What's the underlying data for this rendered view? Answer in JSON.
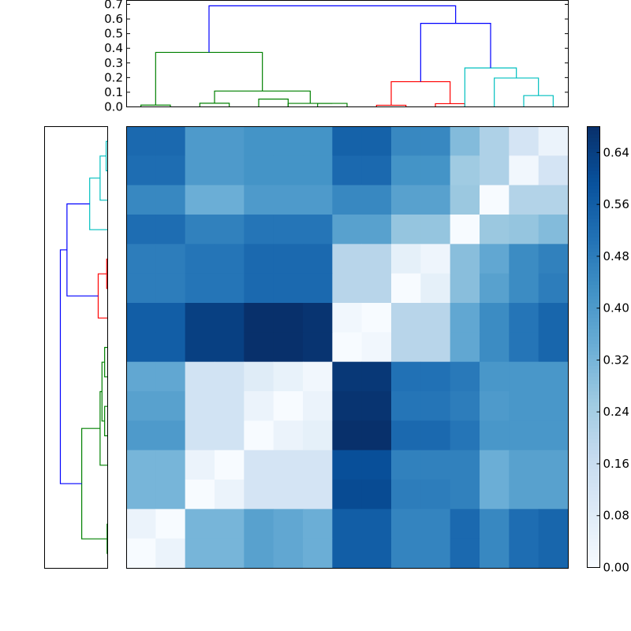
{
  "chart_data": [
    {
      "type": "dendrogram",
      "orientation": "top",
      "ylim": [
        0,
        0.7
      ],
      "yticks": [
        "0.0",
        "0.1",
        "0.2",
        "0.3",
        "0.4",
        "0.5",
        "0.6",
        "0.7"
      ],
      "colors": {
        "blue": "#0000ff",
        "green": "#008000",
        "red": "#ff0000",
        "cyan": "#00bfbf"
      },
      "links": [
        {
          "a": 0,
          "b": 1,
          "h": 0.012,
          "color": "green"
        },
        {
          "a": 2,
          "b": 3,
          "h": 0.025,
          "color": "green"
        },
        {
          "a": 4,
          "b": 5,
          "h": 0.053,
          "color": "green"
        },
        {
          "a": 6,
          "b": 7,
          "h": 0.024,
          "color": "green"
        },
        {
          "a": 5,
          "b": 6.5,
          "h": 0.024,
          "color": "green"
        },
        {
          "a": 2.5,
          "b": 5.75,
          "h": 0.108,
          "color": "green"
        },
        {
          "a": 0.5,
          "b": 4.125,
          "h": 0.372,
          "color": "green"
        },
        {
          "a": 8,
          "b": 9,
          "h": 0.011,
          "color": "red"
        },
        {
          "a": 10,
          "b": 11,
          "h": 0.022,
          "color": "red"
        },
        {
          "a": 8.5,
          "b": 10.5,
          "h": 0.172,
          "color": "red"
        },
        {
          "a": 13,
          "b": 14,
          "h": 0.077,
          "color": "cyan"
        },
        {
          "a": 12,
          "b": 13.5,
          "h": 0.197,
          "color": "cyan"
        },
        {
          "a": 11,
          "b": 12.75,
          "h": 0.266,
          "color": "cyan"
        },
        {
          "a": 9.5,
          "b": 11.875,
          "h": 0.57,
          "color": "blue"
        },
        {
          "a": 2.3125,
          "b": 10.6875,
          "h": 0.69,
          "color": "blue"
        }
      ]
    },
    {
      "type": "dendrogram",
      "orientation": "left",
      "leaves": 15,
      "links": [
        {
          "a": 14,
          "b": 13,
          "h": 0.008,
          "color": "cyan"
        },
        {
          "a": 12,
          "b": 13.5,
          "h": 0.04,
          "color": "cyan"
        },
        {
          "a": 11,
          "b": 12.75,
          "h": 0.095,
          "color": "cyan"
        },
        {
          "a": 10,
          "b": 9,
          "h": 0.005,
          "color": "red"
        },
        {
          "a": 8,
          "b": 9.5,
          "h": 0.05,
          "color": "red"
        },
        {
          "a": 11.875,
          "b": 8.75,
          "h": 0.215,
          "color": "blue"
        },
        {
          "a": 7,
          "b": 6,
          "h": 0.016,
          "color": "green"
        },
        {
          "a": 5,
          "b": 4,
          "h": 0.016,
          "color": "green"
        },
        {
          "a": 6.5,
          "b": 4.5,
          "h": 0.03,
          "color": "green"
        },
        {
          "a": 3,
          "b": 5.5,
          "h": 0.04,
          "color": "green"
        },
        {
          "a": 1,
          "b": 0,
          "h": 0.003,
          "color": "green"
        },
        {
          "a": 4.25,
          "b": 0.5,
          "h": 0.137,
          "color": "green"
        },
        {
          "a": 10.3125,
          "b": 2.375,
          "h": 0.25,
          "color": "blue"
        }
      ]
    },
    {
      "type": "heatmap",
      "colormap": [
        "#f7fbff",
        "#deebf7",
        "#c6dbef",
        "#9ecae1",
        "#6baed6",
        "#4292c6",
        "#2171b5",
        "#08519c",
        "#08306b"
      ],
      "vmin": 0,
      "vmax": 0.68,
      "matrix": [
        [
          0.53,
          0.53,
          0.4,
          0.4,
          0.42,
          0.42,
          0.42,
          0.55,
          0.55,
          0.45,
          0.45,
          0.3,
          0.22,
          0.12,
          0.04
        ],
        [
          0.52,
          0.52,
          0.4,
          0.4,
          0.42,
          0.42,
          0.42,
          0.53,
          0.53,
          0.42,
          0.42,
          0.25,
          0.22,
          0.02,
          0.12
        ],
        [
          0.45,
          0.45,
          0.34,
          0.34,
          0.4,
          0.4,
          0.4,
          0.45,
          0.45,
          0.38,
          0.38,
          0.26,
          0.0,
          0.21,
          0.21
        ],
        [
          0.52,
          0.52,
          0.47,
          0.47,
          0.5,
          0.5,
          0.5,
          0.38,
          0.38,
          0.27,
          0.27,
          0.0,
          0.26,
          0.27,
          0.3
        ],
        [
          0.48,
          0.48,
          0.5,
          0.5,
          0.53,
          0.53,
          0.53,
          0.2,
          0.2,
          0.06,
          0.03,
          0.29,
          0.36,
          0.44,
          0.47
        ],
        [
          0.48,
          0.48,
          0.5,
          0.5,
          0.53,
          0.53,
          0.53,
          0.2,
          0.2,
          0.0,
          0.06,
          0.29,
          0.38,
          0.44,
          0.48
        ],
        [
          0.56,
          0.56,
          0.64,
          0.64,
          0.68,
          0.68,
          0.67,
          0.02,
          0.0,
          0.2,
          0.2,
          0.36,
          0.44,
          0.5,
          0.54
        ],
        [
          0.56,
          0.56,
          0.64,
          0.64,
          0.68,
          0.68,
          0.67,
          0.0,
          0.02,
          0.2,
          0.2,
          0.36,
          0.44,
          0.5,
          0.54
        ],
        [
          0.36,
          0.36,
          0.13,
          0.13,
          0.08,
          0.05,
          0.02,
          0.66,
          0.66,
          0.51,
          0.51,
          0.49,
          0.41,
          0.41,
          0.41
        ],
        [
          0.38,
          0.38,
          0.13,
          0.13,
          0.04,
          0.0,
          0.04,
          0.67,
          0.67,
          0.5,
          0.5,
          0.48,
          0.4,
          0.41,
          0.41
        ],
        [
          0.4,
          0.4,
          0.13,
          0.13,
          0.0,
          0.04,
          0.06,
          0.68,
          0.68,
          0.53,
          0.53,
          0.5,
          0.41,
          0.41,
          0.41
        ],
        [
          0.32,
          0.32,
          0.04,
          0.0,
          0.12,
          0.12,
          0.12,
          0.6,
          0.6,
          0.47,
          0.47,
          0.47,
          0.34,
          0.38,
          0.38
        ],
        [
          0.32,
          0.32,
          0.0,
          0.04,
          0.12,
          0.12,
          0.12,
          0.61,
          0.61,
          0.48,
          0.48,
          0.47,
          0.34,
          0.38,
          0.38
        ],
        [
          0.04,
          0.0,
          0.32,
          0.32,
          0.38,
          0.36,
          0.34,
          0.56,
          0.56,
          0.46,
          0.46,
          0.53,
          0.45,
          0.52,
          0.54
        ],
        [
          0.0,
          0.04,
          0.32,
          0.32,
          0.38,
          0.36,
          0.34,
          0.56,
          0.56,
          0.46,
          0.46,
          0.53,
          0.45,
          0.52,
          0.54
        ]
      ]
    },
    {
      "type": "colorbar",
      "ticks": [
        "0.00",
        "0.08",
        "0.16",
        "0.24",
        "0.32",
        "0.40",
        "0.48",
        "0.56",
        "0.64"
      ],
      "ylim": [
        0,
        0.68
      ]
    }
  ]
}
